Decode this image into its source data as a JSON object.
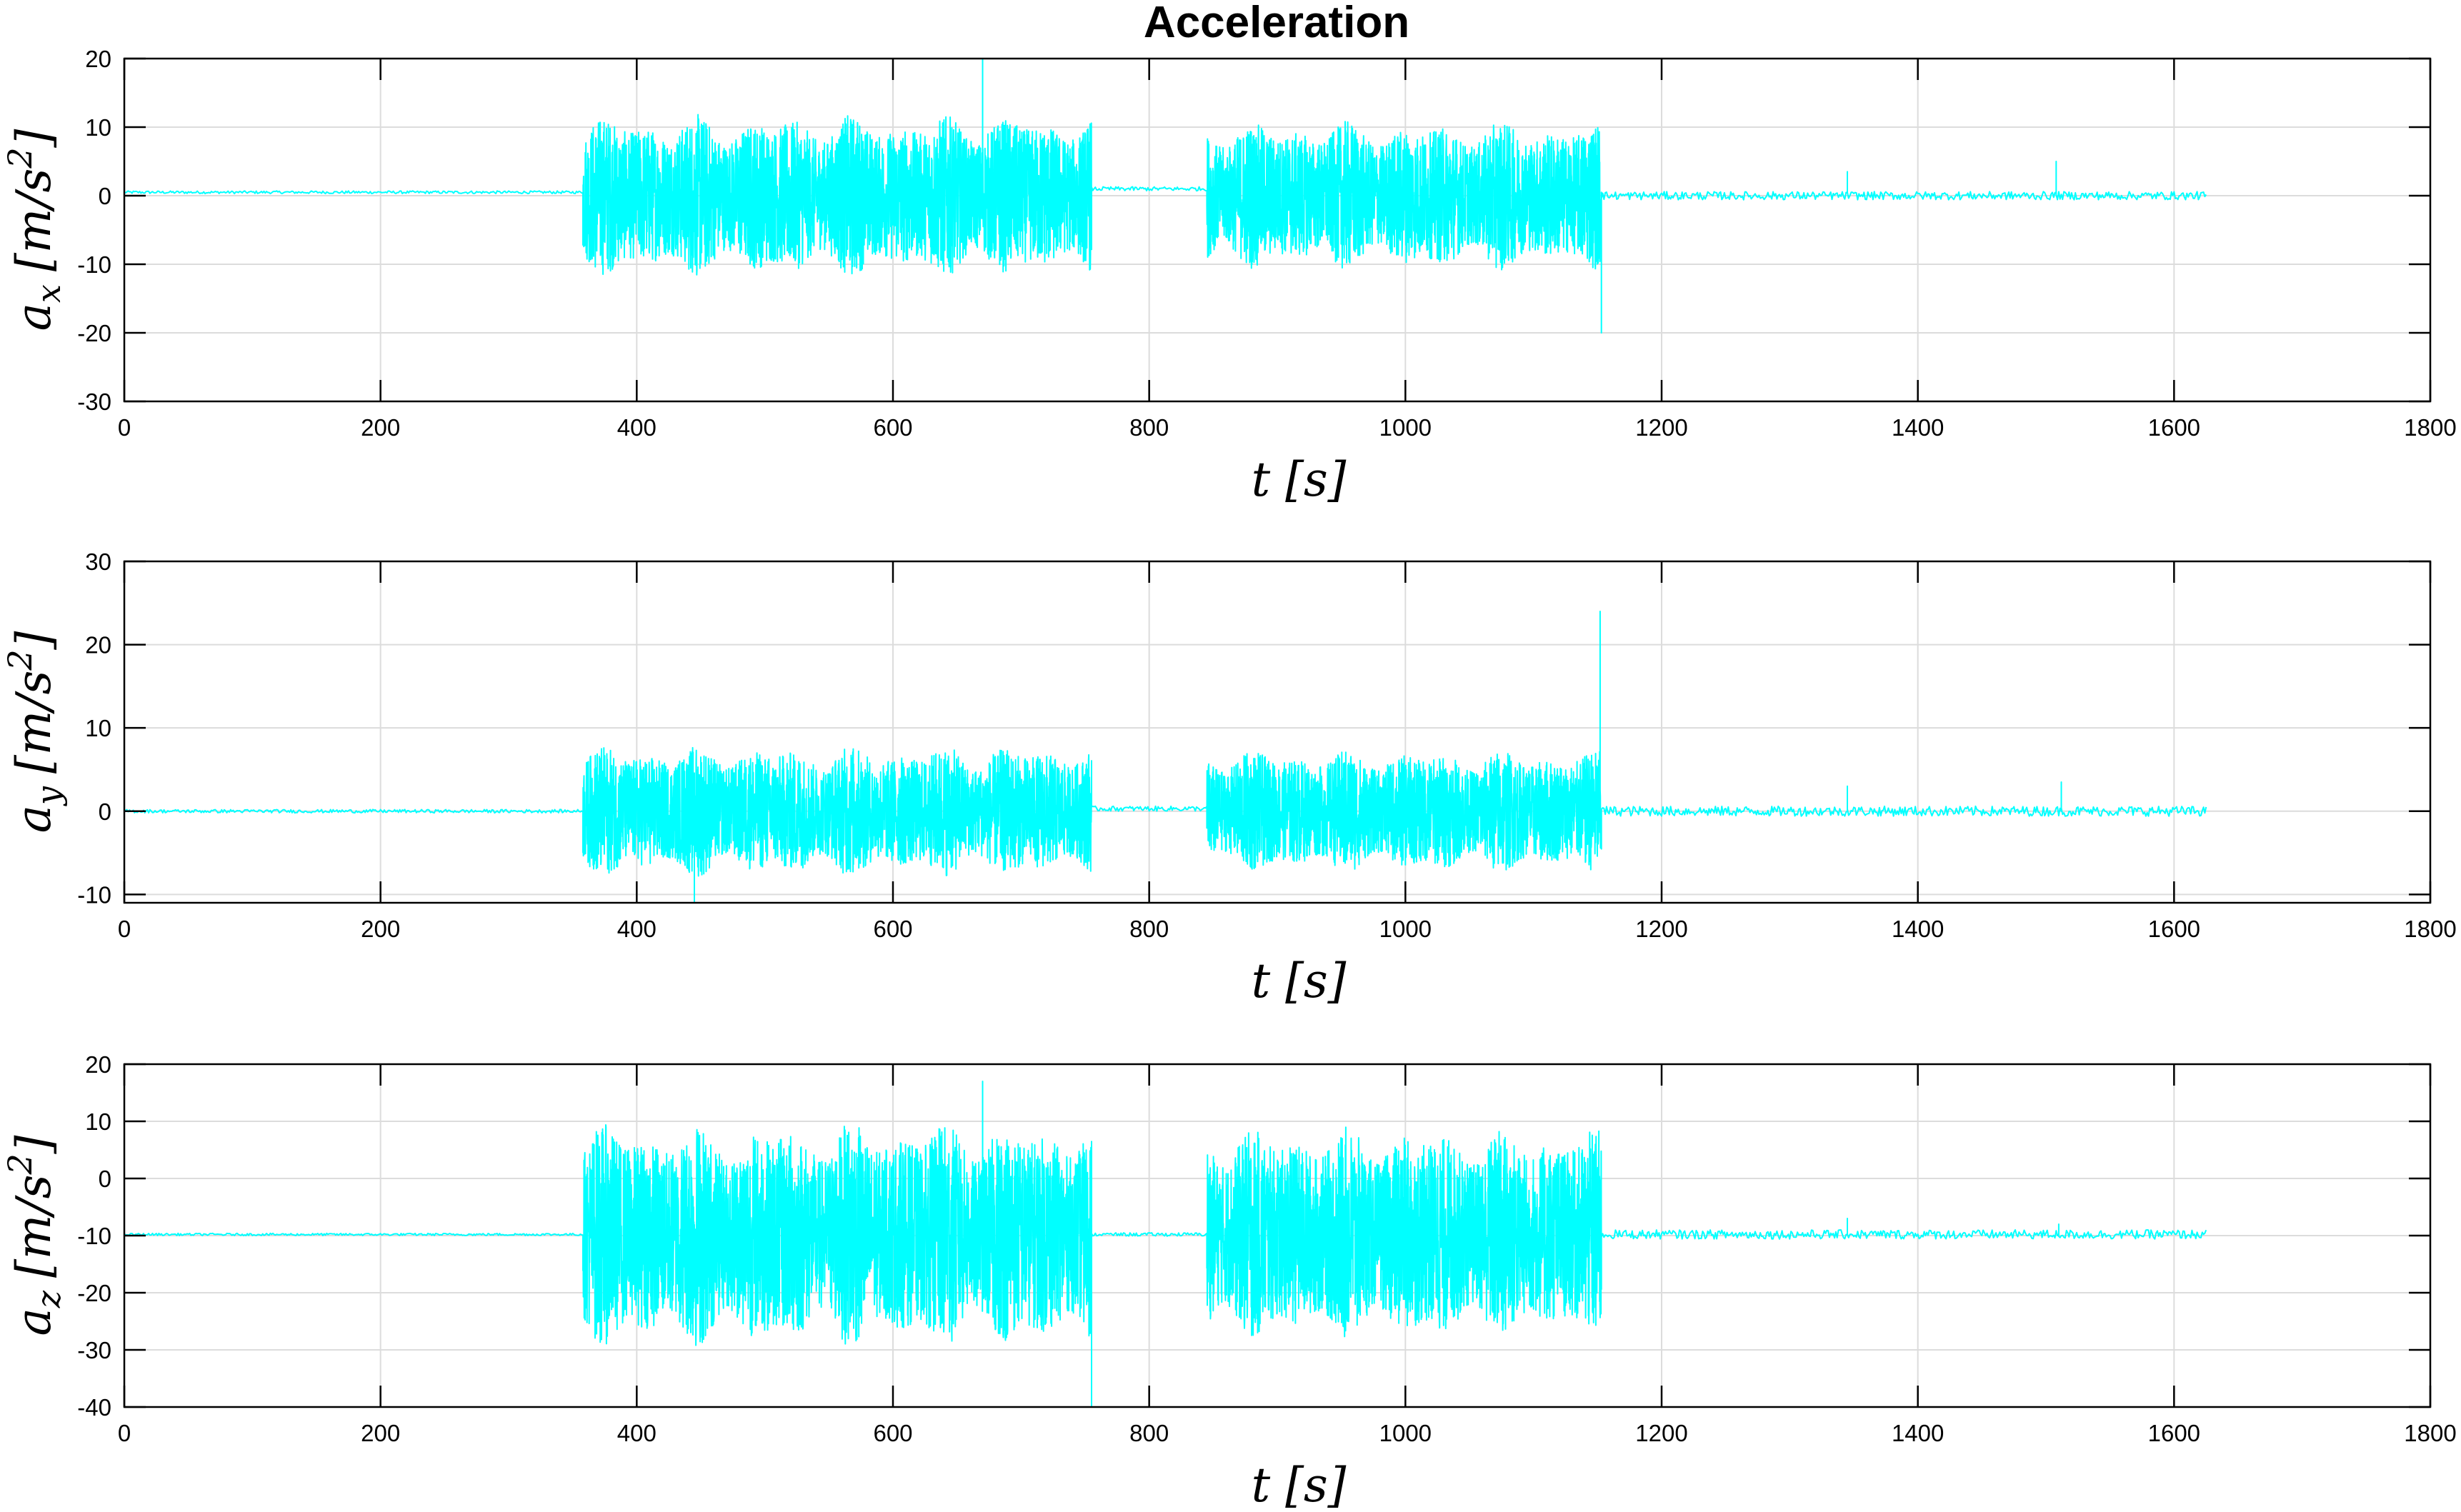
{
  "figure_title": "Acceleration",
  "trace_color": "#00ffff",
  "chart_data": [
    {
      "type": "line",
      "name": "ax",
      "xlabel": "t [s]",
      "ylabel_main": "a",
      "ylabel_sub": "x",
      "ylabel_unit": "[m/s",
      "ylabel_sup": "2",
      "ylabel_close": "]",
      "xlim": [
        0,
        1800
      ],
      "ylim": [
        -30,
        20
      ],
      "xticks": [
        0,
        200,
        400,
        600,
        800,
        1000,
        1200,
        1400,
        1600,
        1800
      ],
      "yticks": [
        -30,
        -20,
        -10,
        0,
        10,
        20
      ],
      "grid": true,
      "baseline": 0.5,
      "segments": [
        {
          "t_start": 0,
          "t_end": 358,
          "center": 0.5,
          "amplitude": 0.2
        },
        {
          "t_start": 358,
          "t_end": 755,
          "center": 0,
          "amplitude": 12
        },
        {
          "t_start": 755,
          "t_end": 845,
          "center": 1,
          "amplitude": 0.3
        },
        {
          "t_start": 845,
          "t_end": 1153,
          "center": 0,
          "amplitude": 11
        },
        {
          "t_start": 1153,
          "t_end": 1625,
          "center": 0,
          "amplitude": 0.6
        }
      ],
      "spikes": [
        {
          "t": 670,
          "value": 20
        },
        {
          "t": 1153,
          "value": -20
        },
        {
          "t": 1508,
          "value": 5
        },
        {
          "t": 1345,
          "value": 3.5
        }
      ]
    },
    {
      "type": "line",
      "name": "ay",
      "xlabel": "t [s]",
      "ylabel_main": "a",
      "ylabel_sub": "y",
      "ylabel_unit": "[m/s",
      "ylabel_sup": "2",
      "ylabel_close": "]",
      "xlim": [
        0,
        1800
      ],
      "ylim": [
        -11,
        30
      ],
      "xticks": [
        0,
        200,
        400,
        600,
        800,
        1000,
        1200,
        1400,
        1600,
        1800
      ],
      "yticks": [
        -10,
        0,
        10,
        20,
        30
      ],
      "grid": true,
      "baseline": 0,
      "segments": [
        {
          "t_start": 0,
          "t_end": 358,
          "center": 0,
          "amplitude": 0.2
        },
        {
          "t_start": 358,
          "t_end": 755,
          "center": 0,
          "amplitude": 8
        },
        {
          "t_start": 755,
          "t_end": 845,
          "center": 0.3,
          "amplitude": 0.3
        },
        {
          "t_start": 845,
          "t_end": 1153,
          "center": 0,
          "amplitude": 7.5
        },
        {
          "t_start": 1153,
          "t_end": 1625,
          "center": 0,
          "amplitude": 0.6
        }
      ],
      "spikes": [
        {
          "t": 1152,
          "value": 24
        },
        {
          "t": 445,
          "value": -11
        },
        {
          "t": 1345,
          "value": 3
        },
        {
          "t": 1512,
          "value": 3.5
        }
      ]
    },
    {
      "type": "line",
      "name": "az",
      "xlabel": "t [s]",
      "ylabel_main": "a",
      "ylabel_sub": "z",
      "ylabel_unit": "[m/s",
      "ylabel_sup": "2",
      "ylabel_close": "]",
      "xlim": [
        0,
        1800
      ],
      "ylim": [
        -40,
        20
      ],
      "xticks": [
        0,
        200,
        400,
        600,
        800,
        1000,
        1200,
        1400,
        1600,
        1800
      ],
      "yticks": [
        -40,
        -30,
        -20,
        -10,
        0,
        10,
        20
      ],
      "grid": true,
      "baseline": -9.8,
      "segments": [
        {
          "t_start": 0,
          "t_end": 358,
          "center": -9.8,
          "amplitude": 0.2
        },
        {
          "t_start": 358,
          "t_end": 755,
          "center": -9.8,
          "amplitude": 20
        },
        {
          "t_start": 755,
          "t_end": 845,
          "center": -9.8,
          "amplitude": 0.3
        },
        {
          "t_start": 845,
          "t_end": 1153,
          "center": -9.8,
          "amplitude": 19
        },
        {
          "t_start": 1153,
          "t_end": 1625,
          "center": -9.8,
          "amplitude": 0.8
        }
      ],
      "spikes": [
        {
          "t": 670,
          "value": 17
        },
        {
          "t": 755,
          "value": -40
        },
        {
          "t": 1345,
          "value": -7
        },
        {
          "t": 1510,
          "value": -8
        }
      ]
    }
  ]
}
